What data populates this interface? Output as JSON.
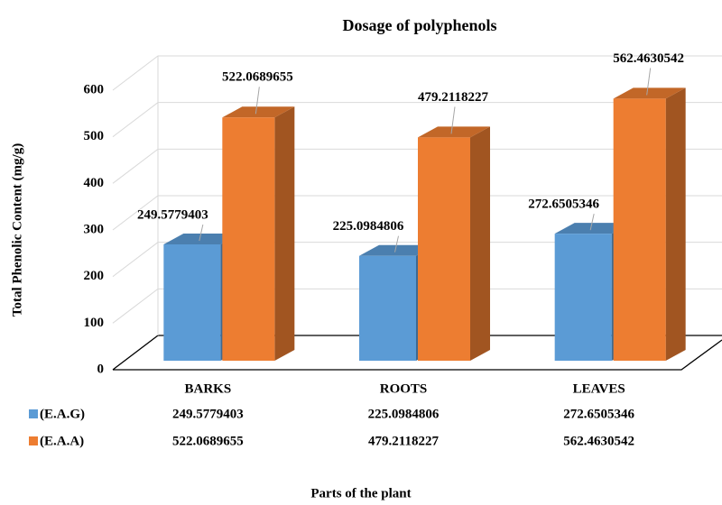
{
  "chart_data": {
    "type": "bar3d",
    "title": "Dosage of polyphenols",
    "y_label": "Total Phenolic Content (mg/g)",
    "x_label": "Parts of the plant",
    "categories": [
      "BARKS",
      "ROOTS",
      "LEAVES"
    ],
    "series": [
      {
        "name": "(E.A.G)",
        "color": "#5b9bd5",
        "values": [
          249.5779403,
          225.0984806,
          272.6505346
        ]
      },
      {
        "name": "(E.A.A)",
        "color": "#ed7d31",
        "values": [
          522.0689655,
          479.2118227,
          562.4630542
        ]
      }
    ],
    "ylim": [
      0,
      600
    ],
    "yticks": [
      0,
      100,
      200,
      300,
      400,
      500,
      600
    ],
    "grid": true,
    "data_labels": true,
    "data_table": true
  }
}
